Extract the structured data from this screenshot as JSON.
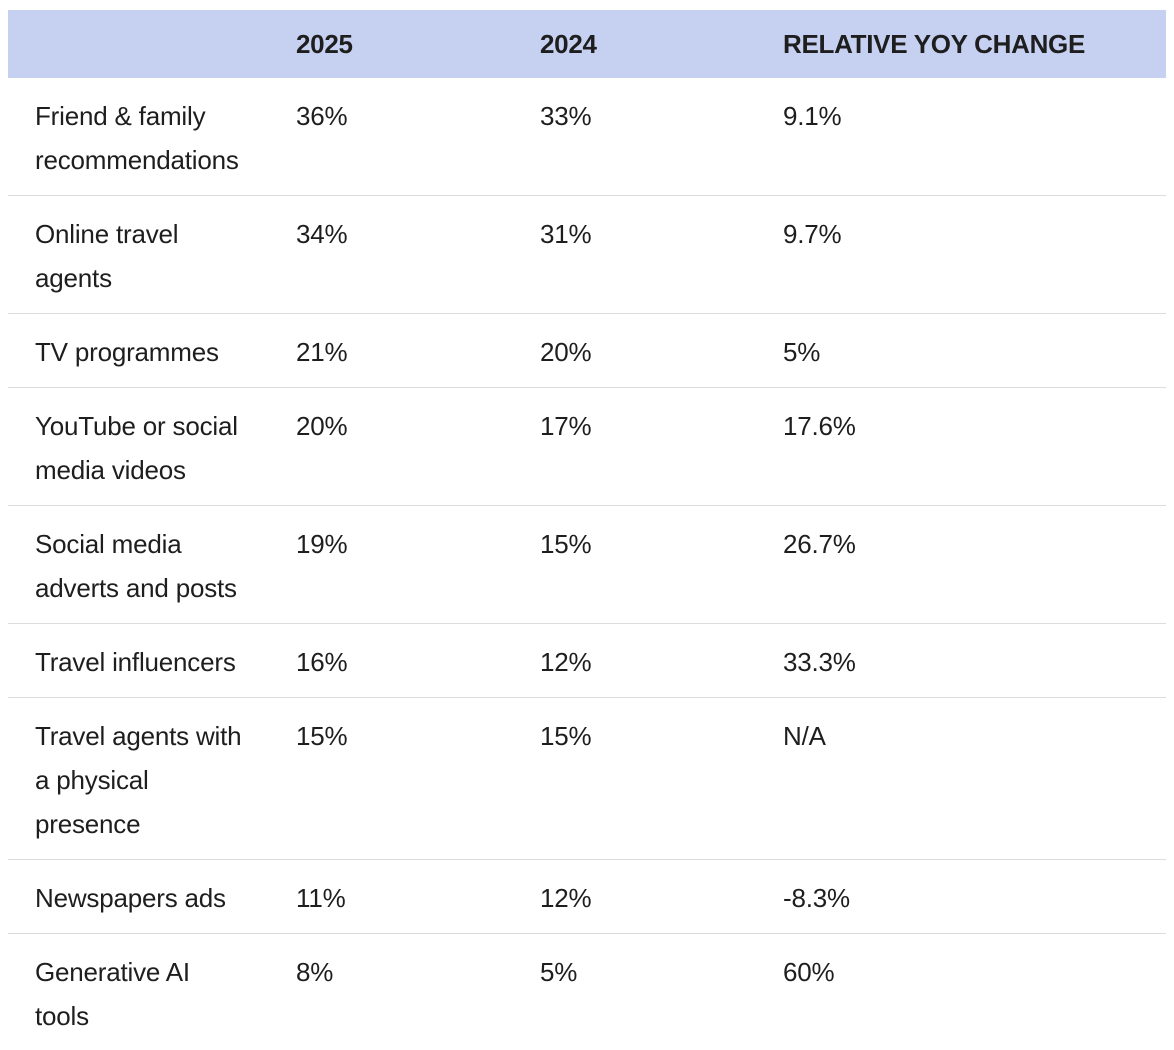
{
  "chart_data": {
    "type": "table",
    "columns": [
      "",
      "2025",
      "2024",
      "RELATIVE YOY CHANGE"
    ],
    "rows": [
      [
        "Friend & family recommendations",
        "36%",
        "33%",
        "9.1%"
      ],
      [
        "Online travel agents",
        "34%",
        "31%",
        "9.7%"
      ],
      [
        "TV programmes",
        "21%",
        "20%",
        "5%"
      ],
      [
        "YouTube or social media videos",
        "20%",
        "17%",
        "17.6%"
      ],
      [
        "Social media adverts and posts",
        "19%",
        "15%",
        "26.7%"
      ],
      [
        "Travel influencers",
        "16%",
        "12%",
        "33.3%"
      ],
      [
        "Travel agents with a physical presence",
        "15%",
        "15%",
        "N/A"
      ],
      [
        "Newspapers ads",
        "11%",
        "12%",
        "-8.3%"
      ],
      [
        "Generative AI tools",
        "8%",
        "5%",
        "60%"
      ]
    ]
  },
  "table": {
    "header": {
      "source": "",
      "year_2025": "2025",
      "year_2024": "2024",
      "yoy": "RELATIVE YOY CHANGE"
    },
    "rows": [
      {
        "label": "Friend & family\nrecommendations",
        "v2025": "36%",
        "v2024": "33%",
        "yoy": "9.1%"
      },
      {
        "label": "Online travel\nagents",
        "v2025": "34%",
        "v2024": "31%",
        "yoy": "9.7%"
      },
      {
        "label": "TV programmes",
        "v2025": "21%",
        "v2024": "20%",
        "yoy": "5%"
      },
      {
        "label": "YouTube or social\nmedia videos",
        "v2025": "20%",
        "v2024": "17%",
        "yoy": "17.6%"
      },
      {
        "label": "Social media\nadverts and posts",
        "v2025": "19%",
        "v2024": "15%",
        "yoy": "26.7%"
      },
      {
        "label": "Travel influencers",
        "v2025": "16%",
        "v2024": "12%",
        "yoy": "33.3%"
      },
      {
        "label": "Travel agents with\na physical\npresence",
        "v2025": "15%",
        "v2024": "15%",
        "yoy": "N/A"
      },
      {
        "label": "Newspapers ads",
        "v2025": "11%",
        "v2024": "12%",
        "yoy": "-8.3%"
      },
      {
        "label": "Generative AI\ntools",
        "v2025": "8%",
        "v2024": "5%",
        "yoy": "60%"
      }
    ]
  },
  "colors": {
    "header_bg": "#c6d0f1",
    "text": "#1e1e1e",
    "divider": "#dcdcdc",
    "background": "#ffffff"
  }
}
